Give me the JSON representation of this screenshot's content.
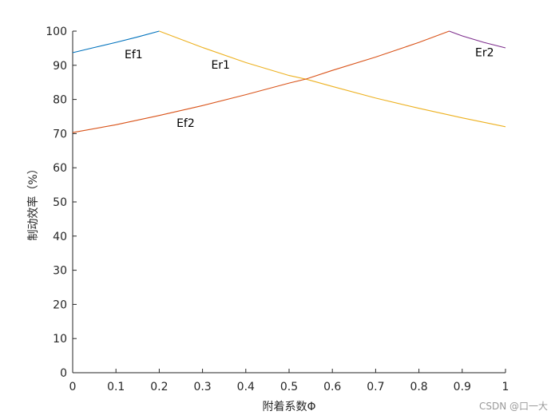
{
  "chart_data": {
    "type": "line",
    "title": "",
    "xlabel": "附着系数Φ",
    "ylabel": "制动效率（%）",
    "xlim": [
      0,
      1
    ],
    "ylim": [
      0,
      100
    ],
    "xticks": [
      0,
      0.1,
      0.2,
      0.3,
      0.4,
      0.5,
      0.6,
      0.7,
      0.8,
      0.9,
      1
    ],
    "xtick_labels": [
      "0",
      "0.1",
      "0.2",
      "0.3",
      "0.4",
      "0.5",
      "0.6",
      "0.7",
      "0.8",
      "0.9",
      "1"
    ],
    "yticks": [
      0,
      10,
      20,
      30,
      40,
      50,
      60,
      70,
      80,
      90,
      100
    ],
    "ytick_labels": [
      "0",
      "10",
      "20",
      "30",
      "40",
      "50",
      "60",
      "70",
      "80",
      "90",
      "100"
    ],
    "grid": false,
    "legend": "none",
    "series": [
      {
        "name": "Ef1",
        "color": "#0072BD",
        "x": [
          0,
          0.05,
          0.1,
          0.15,
          0.2
        ],
        "y": [
          93.7,
          95.2,
          96.7,
          98.3,
          100
        ]
      },
      {
        "name": "Er1",
        "color": "#EDB120",
        "x": [
          0.2,
          0.3,
          0.4,
          0.5,
          0.54,
          0.6,
          0.7,
          0.8,
          0.9,
          1.0
        ],
        "y": [
          100,
          95.2,
          90.8,
          87.0,
          85.9,
          83.8,
          80.4,
          77.4,
          74.6,
          72.0
        ]
      },
      {
        "name": "Ef2",
        "color": "#D95319",
        "x": [
          0,
          0.1,
          0.2,
          0.3,
          0.4,
          0.5,
          0.54,
          0.6,
          0.7,
          0.8,
          0.87
        ],
        "y": [
          70.3,
          72.6,
          75.3,
          78.2,
          81.4,
          84.8,
          86.0,
          88.5,
          92.4,
          96.7,
          100
        ]
      },
      {
        "name": "Er2",
        "color": "#7E2F8E",
        "x": [
          0.87,
          0.9,
          0.95,
          1.0
        ],
        "y": [
          100,
          98.6,
          96.7,
          95.1
        ]
      }
    ],
    "annotations": [
      {
        "text": "Ef1",
        "x": 0.12,
        "y": 92
      },
      {
        "text": "Er1",
        "x": 0.32,
        "y": 89
      },
      {
        "text": "Ef2",
        "x": 0.24,
        "y": 72
      },
      {
        "text": "Er2",
        "x": 0.93,
        "y": 92.6
      }
    ]
  },
  "watermark": "CSDN @口一大"
}
